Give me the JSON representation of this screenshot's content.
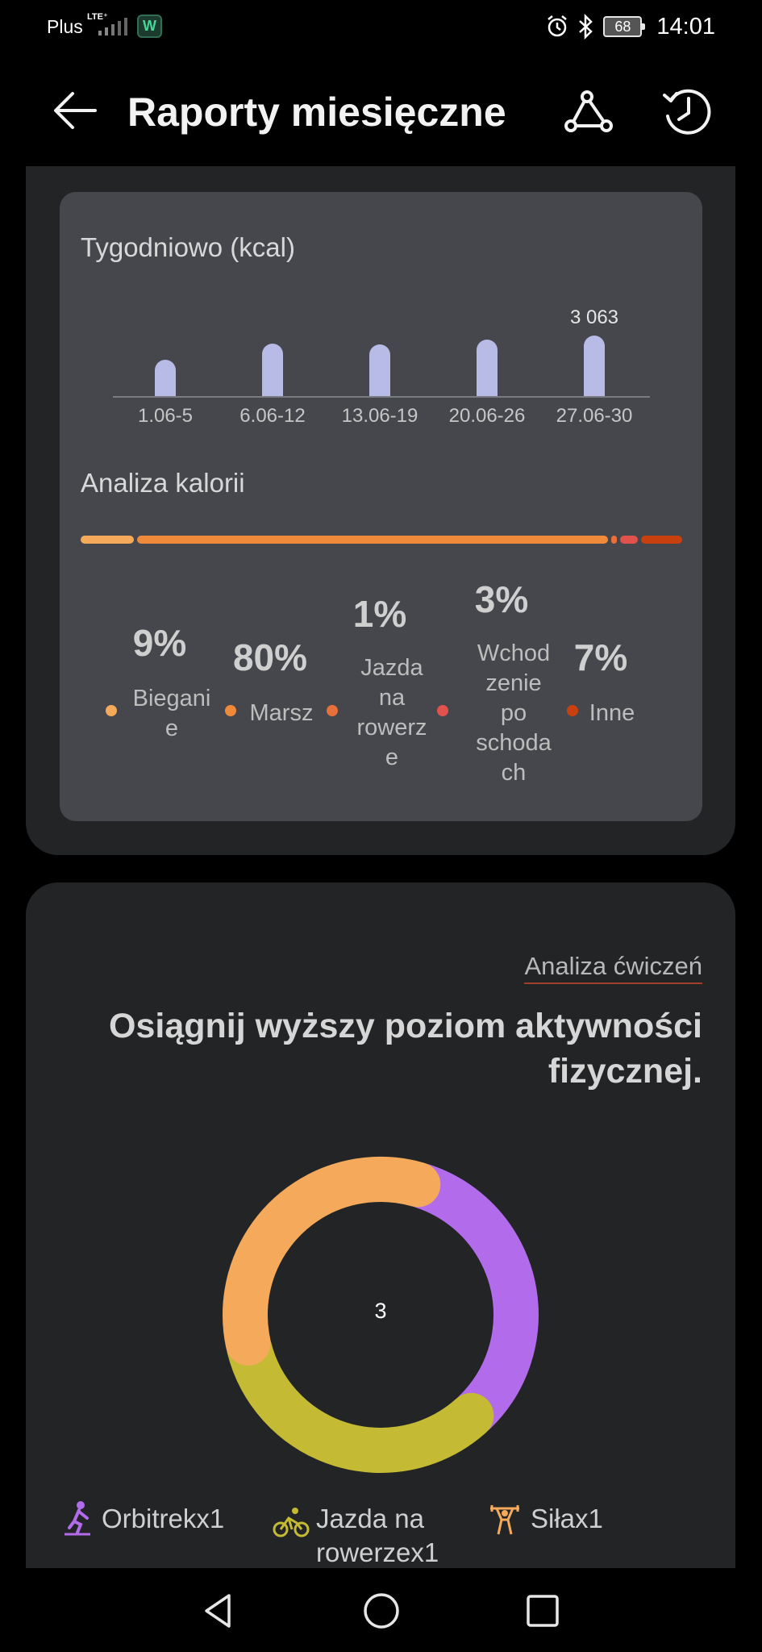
{
  "status_bar": {
    "carrier": "Plus",
    "network": "LTE⁺",
    "app_badge": "W",
    "battery": "68",
    "time": "14:01",
    "icons": [
      "alarm-icon",
      "bluetooth-icon",
      "battery-icon"
    ]
  },
  "header": {
    "title": "Raporty miesięczne",
    "back_icon": "arrow-left-icon",
    "share_icon": "route-share-icon",
    "history_icon": "history-clock-icon"
  },
  "weekly": {
    "title": "Tygodniowo (kcal)",
    "peak_label": "3 063"
  },
  "chart_data": {
    "type": "bar",
    "title": "Tygodniowo (kcal)",
    "categories": [
      "1.06-5",
      "6.06-12",
      "13.06-19",
      "20.06-26",
      "27.06-30"
    ],
    "values": [
      1850,
      2650,
      2600,
      2850,
      3063
    ],
    "data_labels": {
      "27.06-30": "3 063"
    },
    "ylim": [
      0,
      3500
    ],
    "grid": false,
    "color": "#b7bbe6"
  },
  "calorie_analysis": {
    "title": "Analiza kalorii",
    "items": [
      {
        "pct": "9%",
        "name": "Bieganie",
        "name_lines": [
          "Biegani",
          "e"
        ],
        "color": "#f5a95b",
        "share": 9
      },
      {
        "pct": "80%",
        "name": "Marsz",
        "name_lines": [
          "Marsz"
        ],
        "color": "#ef8a3a",
        "share": 80
      },
      {
        "pct": "1%",
        "name": "Jazda na rowerze",
        "name_lines": [
          "Jazda",
          "na",
          "rowerz",
          "e"
        ],
        "color": "#e86f3a",
        "share": 1
      },
      {
        "pct": "3%",
        "name": "Wchodzenie po schodach",
        "name_lines": [
          "Wchod",
          "zenie",
          "po",
          "schoda",
          "ch"
        ],
        "color": "#e2524d",
        "share": 3
      },
      {
        "pct": "7%",
        "name": "Inne",
        "name_lines": [
          "Inne"
        ],
        "color": "#c9400f",
        "share": 7
      }
    ]
  },
  "exercise": {
    "link": "Analiza ćwiczeń",
    "headline": "Osiągnij wyższy poziom aktywności fizycznej.",
    "total": "3",
    "segments": [
      {
        "name": "Orbitrek",
        "count": 1,
        "color": "#b26bea"
      },
      {
        "name": "Jazda na rowerze",
        "count": 1,
        "color": "#c4ba34"
      },
      {
        "name": "Siła",
        "count": 1,
        "color": "#f5a95b"
      }
    ],
    "legend": [
      {
        "label": "Orbitrekx1",
        "icon": "elliptical-trainer-icon",
        "color": "#b26bea"
      },
      {
        "label_lines": [
          "Jazda na",
          "rowerzex1"
        ],
        "icon": "cycling-icon",
        "color": "#c4ba34"
      },
      {
        "label": "Siłax1",
        "icon": "weightlifting-icon",
        "color": "#f5a95b"
      }
    ]
  },
  "nav": {
    "back": "back-triangle-icon",
    "home": "home-circle-icon",
    "recents": "recents-square-icon"
  }
}
